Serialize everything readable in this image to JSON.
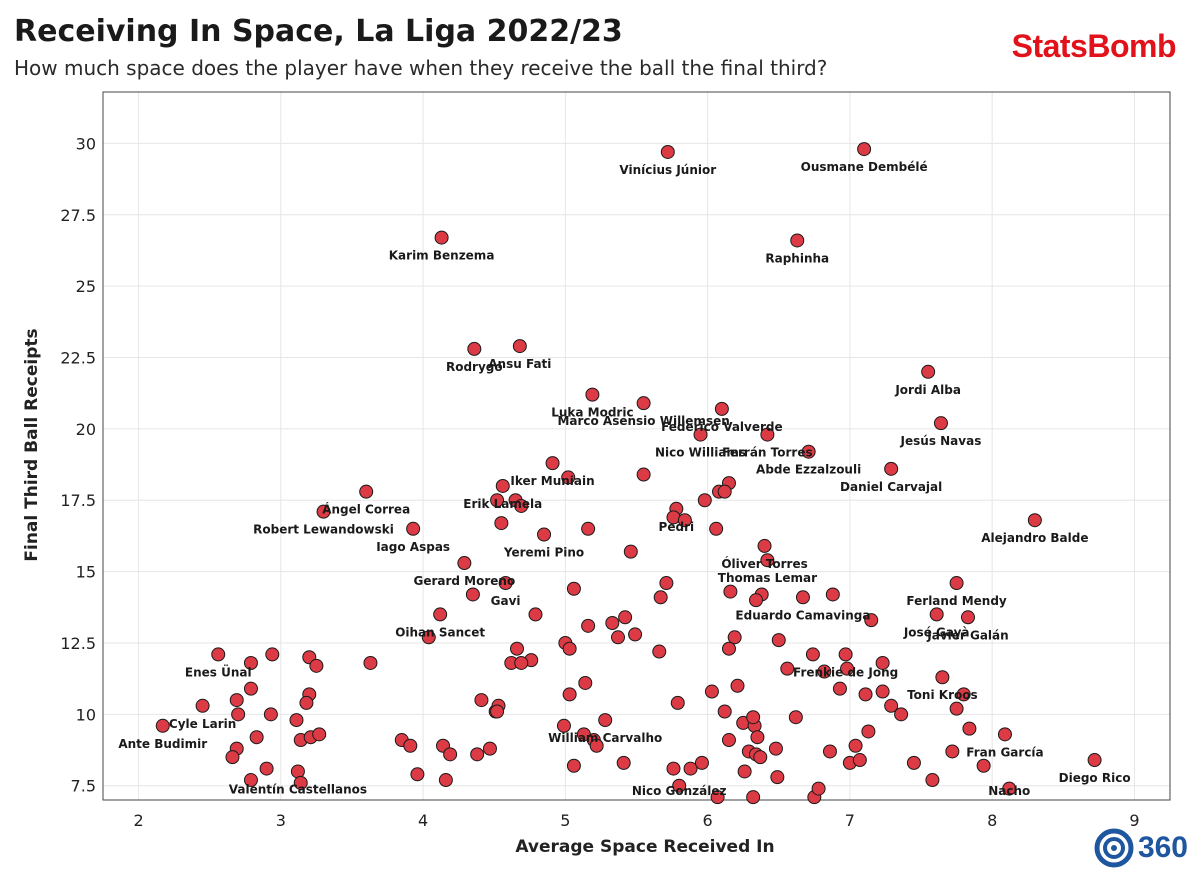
{
  "header": {
    "title": "Receiving In Space, La Liga 2022/23",
    "subtitle": "How much space does the player have when they receive the ball the final third?",
    "brand": "StatsBomb",
    "badge": "360"
  },
  "colors": {
    "point": "#dc3a44",
    "brand": "#e1121a",
    "badge": "#1e56a0"
  },
  "chart_data": {
    "type": "scatter",
    "xlabel": "Average Space Received In",
    "ylabel": "Final Third Ball Receipts",
    "xlim": [
      1.75,
      9.25
    ],
    "ylim": [
      7.0,
      31.8
    ],
    "xticks": [
      2,
      3,
      4,
      5,
      6,
      7,
      8,
      9
    ],
    "yticks": [
      7.5,
      10,
      12.5,
      15,
      17.5,
      20,
      22.5,
      25,
      27.5,
      30
    ],
    "grid": true,
    "points": [
      {
        "x": 7.1,
        "y": 29.8,
        "label": "Ousmane Dembélé"
      },
      {
        "x": 5.72,
        "y": 29.7,
        "label": "Vinícius Júnior"
      },
      {
        "x": 4.13,
        "y": 26.7,
        "label": "Karim Benzema"
      },
      {
        "x": 6.63,
        "y": 26.6,
        "label": "Raphinha"
      },
      {
        "x": 4.68,
        "y": 22.9,
        "label": "Ansu Fati"
      },
      {
        "x": 4.36,
        "y": 22.8,
        "label": "Rodrygo"
      },
      {
        "x": 7.55,
        "y": 22.0,
        "label": "Jordi Alba"
      },
      {
        "x": 5.19,
        "y": 21.2,
        "label": "Luka Modric"
      },
      {
        "x": 5.55,
        "y": 20.9,
        "label": "Marco Asensio Willemsen"
      },
      {
        "x": 6.1,
        "y": 20.7,
        "label": "Federico Valverde"
      },
      {
        "x": 7.64,
        "y": 20.2,
        "label": "Jesús Navas"
      },
      {
        "x": 6.42,
        "y": 19.8,
        "label": "Ferrán Torres"
      },
      {
        "x": 5.95,
        "y": 19.8,
        "label": "Nico Williams"
      },
      {
        "x": 6.71,
        "y": 19.2,
        "label": "Abde Ezzalzouli"
      },
      {
        "x": 7.29,
        "y": 18.6,
        "label": "Daniel Carvajal"
      },
      {
        "x": 4.91,
        "y": 18.8,
        "label": "Iker Muniain"
      },
      {
        "x": 4.56,
        "y": 18.0,
        "label": "Erik Lamela"
      },
      {
        "x": 3.6,
        "y": 17.8,
        "label": "Ángel Correa"
      },
      {
        "x": 3.3,
        "y": 17.1,
        "label": "Robert Lewandowski"
      },
      {
        "x": 8.3,
        "y": 16.8,
        "label": "Alejandro Balde"
      },
      {
        "x": 5.78,
        "y": 17.2,
        "label": "Pedri"
      },
      {
        "x": 3.93,
        "y": 16.5,
        "label": "Iago Aspas"
      },
      {
        "x": 4.85,
        "y": 16.3,
        "label": "Yeremi Pino"
      },
      {
        "x": 6.4,
        "y": 15.9,
        "label": "Óliver Torres"
      },
      {
        "x": 6.42,
        "y": 15.4,
        "label": "Thomas Lemar"
      },
      {
        "x": 4.29,
        "y": 15.3,
        "label": "Gerard Moreno"
      },
      {
        "x": 7.75,
        "y": 14.6,
        "label": "Ferland Mendy"
      },
      {
        "x": 6.67,
        "y": 14.1,
        "label": "Eduardo Camavinga"
      },
      {
        "x": 4.58,
        "y": 14.6,
        "label": "Gavi"
      },
      {
        "x": 4.12,
        "y": 13.5,
        "label": "Oihan Sancet"
      },
      {
        "x": 7.83,
        "y": 13.4,
        "label": "Javier Galán"
      },
      {
        "x": 7.61,
        "y": 13.5,
        "label": "José Gayà"
      },
      {
        "x": 6.97,
        "y": 12.1,
        "label": "Frenkie de Jong"
      },
      {
        "x": 2.56,
        "y": 12.1,
        "label": "Enes Ünal"
      },
      {
        "x": 7.65,
        "y": 11.3,
        "label": "Toni Kroos"
      },
      {
        "x": 2.45,
        "y": 10.3,
        "label": "Cyle Larin"
      },
      {
        "x": 2.17,
        "y": 9.6,
        "label": "Ante Budimir"
      },
      {
        "x": 5.28,
        "y": 9.8,
        "label": "William Carvalho"
      },
      {
        "x": 8.09,
        "y": 9.3,
        "label": "Fran García"
      },
      {
        "x": 8.72,
        "y": 8.4,
        "label": "Diego Rico"
      },
      {
        "x": 3.12,
        "y": 8.0,
        "label": "Valentín Castellanos"
      },
      {
        "x": 5.8,
        "y": 7.5,
        "label": "Nico González"
      },
      {
        "x": 8.12,
        "y": 7.4,
        "label": "Nacho"
      },
      {
        "x": 5.02,
        "y": 18.3
      },
      {
        "x": 5.55,
        "y": 18.4
      },
      {
        "x": 6.15,
        "y": 18.1
      },
      {
        "x": 6.08,
        "y": 17.8
      },
      {
        "x": 6.12,
        "y": 17.8
      },
      {
        "x": 5.98,
        "y": 17.5
      },
      {
        "x": 4.52,
        "y": 17.5
      },
      {
        "x": 4.65,
        "y": 17.5
      },
      {
        "x": 4.69,
        "y": 17.3
      },
      {
        "x": 4.55,
        "y": 16.7
      },
      {
        "x": 5.16,
        "y": 16.5
      },
      {
        "x": 5.76,
        "y": 16.9
      },
      {
        "x": 5.84,
        "y": 16.8
      },
      {
        "x": 6.06,
        "y": 16.5
      },
      {
        "x": 5.46,
        "y": 15.7
      },
      {
        "x": 5.71,
        "y": 14.6
      },
      {
        "x": 5.67,
        "y": 14.1
      },
      {
        "x": 5.06,
        "y": 14.4
      },
      {
        "x": 6.16,
        "y": 14.3
      },
      {
        "x": 6.38,
        "y": 14.2
      },
      {
        "x": 6.34,
        "y": 14.0
      },
      {
        "x": 6.88,
        "y": 14.2
      },
      {
        "x": 4.35,
        "y": 14.2
      },
      {
        "x": 4.79,
        "y": 13.5
      },
      {
        "x": 5.42,
        "y": 13.4
      },
      {
        "x": 5.33,
        "y": 13.2
      },
      {
        "x": 5.16,
        "y": 13.1
      },
      {
        "x": 7.15,
        "y": 13.3
      },
      {
        "x": 4.04,
        "y": 12.7
      },
      {
        "x": 5.49,
        "y": 12.8
      },
      {
        "x": 5.37,
        "y": 12.7
      },
      {
        "x": 6.19,
        "y": 12.7
      },
      {
        "x": 6.5,
        "y": 12.6
      },
      {
        "x": 5.0,
        "y": 12.5
      },
      {
        "x": 5.03,
        "y": 12.3
      },
      {
        "x": 5.66,
        "y": 12.2
      },
      {
        "x": 6.15,
        "y": 12.3
      },
      {
        "x": 4.66,
        "y": 12.3
      },
      {
        "x": 4.62,
        "y": 11.8
      },
      {
        "x": 4.76,
        "y": 11.9
      },
      {
        "x": 4.69,
        "y": 11.8
      },
      {
        "x": 6.74,
        "y": 12.1
      },
      {
        "x": 6.98,
        "y": 11.6
      },
      {
        "x": 7.23,
        "y": 11.8
      },
      {
        "x": 6.56,
        "y": 11.6
      },
      {
        "x": 6.82,
        "y": 11.5
      },
      {
        "x": 2.94,
        "y": 12.1
      },
      {
        "x": 3.2,
        "y": 12.0
      },
      {
        "x": 3.25,
        "y": 11.7
      },
      {
        "x": 3.63,
        "y": 11.8
      },
      {
        "x": 2.79,
        "y": 11.8
      },
      {
        "x": 2.79,
        "y": 10.9
      },
      {
        "x": 2.69,
        "y": 10.5
      },
      {
        "x": 2.7,
        "y": 10.0
      },
      {
        "x": 3.2,
        "y": 10.7
      },
      {
        "x": 3.18,
        "y": 10.4
      },
      {
        "x": 2.93,
        "y": 10.0
      },
      {
        "x": 3.11,
        "y": 9.8
      },
      {
        "x": 4.41,
        "y": 10.5
      },
      {
        "x": 4.51,
        "y": 10.1
      },
      {
        "x": 4.53,
        "y": 10.3
      },
      {
        "x": 4.52,
        "y": 10.1
      },
      {
        "x": 5.03,
        "y": 10.7
      },
      {
        "x": 5.14,
        "y": 11.1
      },
      {
        "x": 6.03,
        "y": 10.8
      },
      {
        "x": 6.21,
        "y": 11.0
      },
      {
        "x": 5.79,
        "y": 10.4
      },
      {
        "x": 6.12,
        "y": 10.1
      },
      {
        "x": 6.62,
        "y": 9.9
      },
      {
        "x": 6.93,
        "y": 10.9
      },
      {
        "x": 7.11,
        "y": 10.7
      },
      {
        "x": 7.23,
        "y": 10.8
      },
      {
        "x": 7.29,
        "y": 10.3
      },
      {
        "x": 7.36,
        "y": 10.0
      },
      {
        "x": 7.8,
        "y": 10.7
      },
      {
        "x": 7.75,
        "y": 10.2
      },
      {
        "x": 7.84,
        "y": 9.5
      },
      {
        "x": 7.13,
        "y": 9.4
      },
      {
        "x": 7.04,
        "y": 8.9
      },
      {
        "x": 7.0,
        "y": 8.3
      },
      {
        "x": 7.07,
        "y": 8.4
      },
      {
        "x": 6.86,
        "y": 8.7
      },
      {
        "x": 7.45,
        "y": 8.3
      },
      {
        "x": 7.72,
        "y": 8.7
      },
      {
        "x": 7.94,
        "y": 8.2
      },
      {
        "x": 7.58,
        "y": 7.7
      },
      {
        "x": 6.25,
        "y": 9.7
      },
      {
        "x": 6.33,
        "y": 9.6
      },
      {
        "x": 6.32,
        "y": 9.9
      },
      {
        "x": 6.35,
        "y": 9.2
      },
      {
        "x": 6.15,
        "y": 9.1
      },
      {
        "x": 6.29,
        "y": 8.7
      },
      {
        "x": 6.34,
        "y": 8.6
      },
      {
        "x": 6.37,
        "y": 8.5
      },
      {
        "x": 6.48,
        "y": 8.8
      },
      {
        "x": 6.26,
        "y": 8.0
      },
      {
        "x": 6.49,
        "y": 7.8
      },
      {
        "x": 6.75,
        "y": 7.1
      },
      {
        "x": 6.78,
        "y": 7.4
      },
      {
        "x": 6.07,
        "y": 7.1
      },
      {
        "x": 6.32,
        "y": 7.1
      },
      {
        "x": 4.99,
        "y": 9.6
      },
      {
        "x": 5.13,
        "y": 9.3
      },
      {
        "x": 5.2,
        "y": 9.1
      },
      {
        "x": 5.22,
        "y": 8.9
      },
      {
        "x": 5.41,
        "y": 8.3
      },
      {
        "x": 5.06,
        "y": 8.2
      },
      {
        "x": 5.76,
        "y": 8.1
      },
      {
        "x": 5.88,
        "y": 8.1
      },
      {
        "x": 5.96,
        "y": 8.3
      },
      {
        "x": 2.83,
        "y": 9.2
      },
      {
        "x": 2.69,
        "y": 8.8
      },
      {
        "x": 2.66,
        "y": 8.5
      },
      {
        "x": 2.9,
        "y": 8.1
      },
      {
        "x": 2.79,
        "y": 7.7
      },
      {
        "x": 3.14,
        "y": 9.1
      },
      {
        "x": 3.21,
        "y": 9.2
      },
      {
        "x": 3.27,
        "y": 9.3
      },
      {
        "x": 3.14,
        "y": 7.6
      },
      {
        "x": 3.85,
        "y": 9.1
      },
      {
        "x": 3.91,
        "y": 8.9
      },
      {
        "x": 3.96,
        "y": 7.9
      },
      {
        "x": 4.14,
        "y": 8.9
      },
      {
        "x": 4.19,
        "y": 8.6
      },
      {
        "x": 4.16,
        "y": 7.7
      },
      {
        "x": 4.38,
        "y": 8.6
      },
      {
        "x": 4.47,
        "y": 8.8
      }
    ]
  }
}
